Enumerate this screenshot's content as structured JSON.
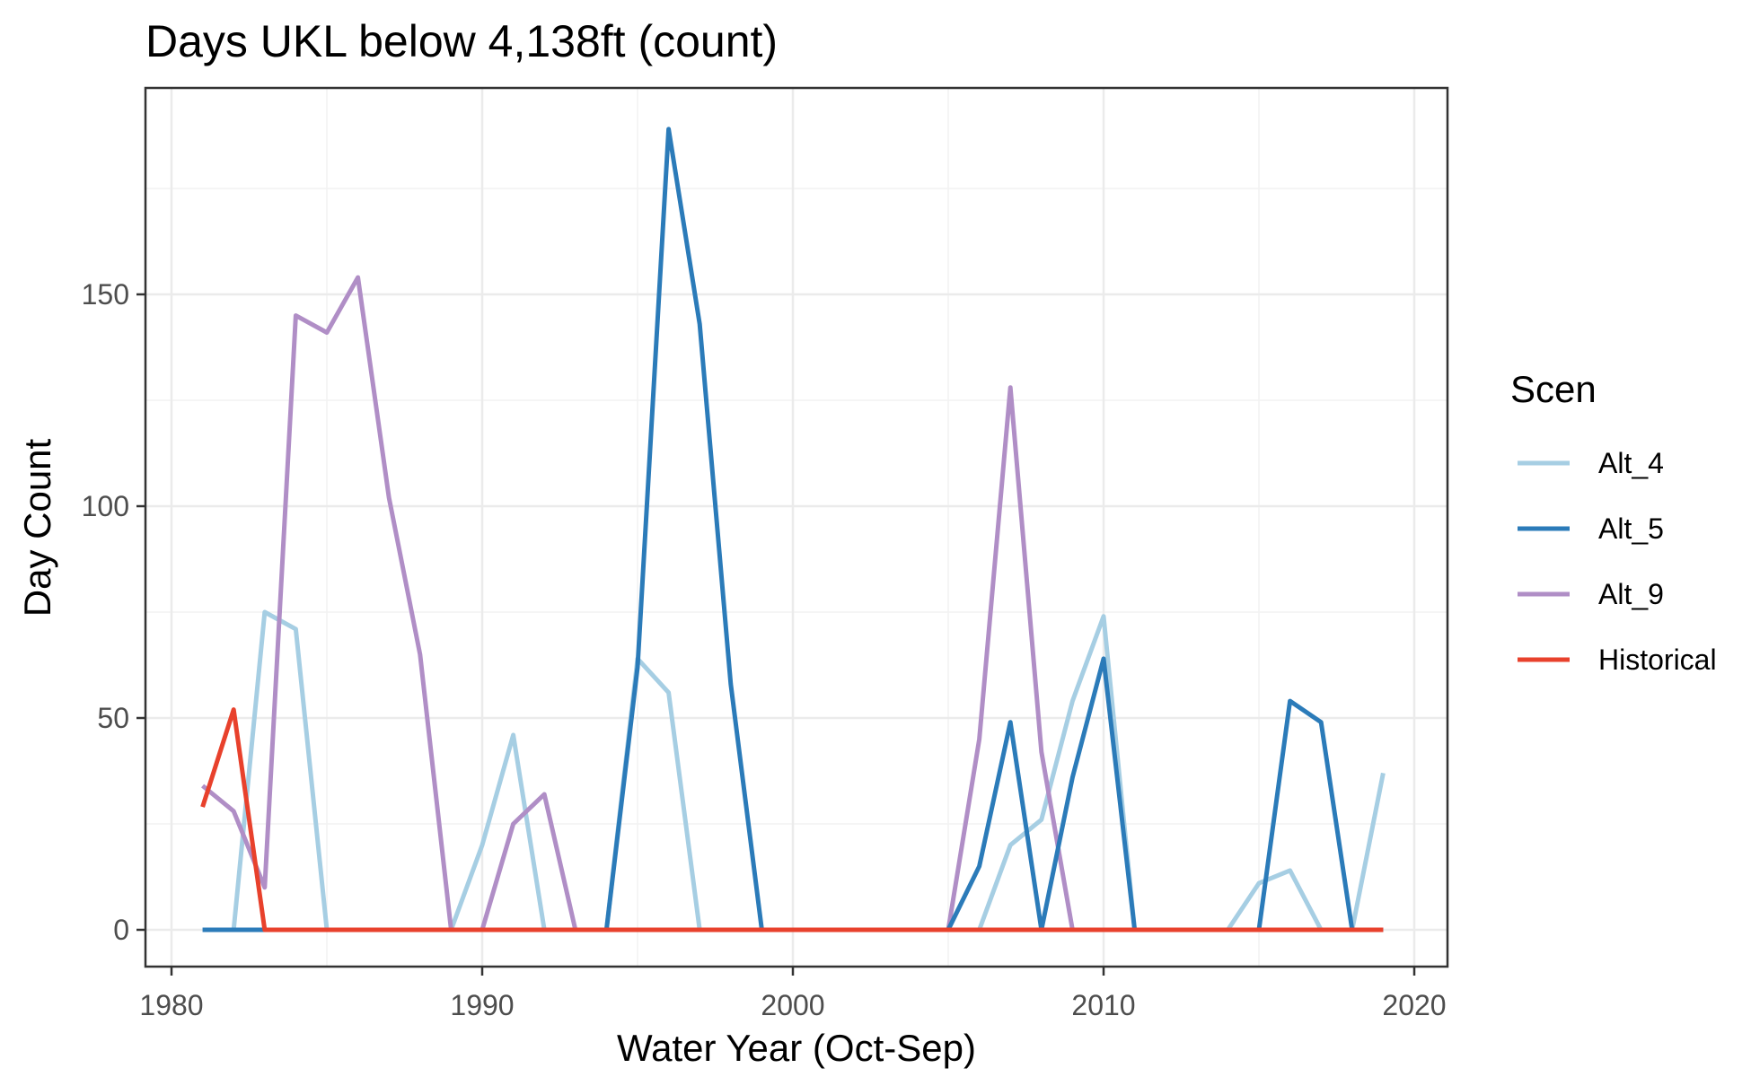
{
  "chart_data": {
    "type": "line",
    "title": "Days UKL below 4,138ft (count)",
    "xlabel": "Water Year (Oct-Sep)",
    "ylabel": "Day Count",
    "xlim": [
      1980,
      2020
    ],
    "ylim": [
      0,
      190
    ],
    "x_ticks": [
      1980,
      1990,
      2000,
      2010,
      2020
    ],
    "y_ticks": [
      0,
      50,
      100,
      150
    ],
    "grid": true,
    "legend": {
      "title": "Scen",
      "position": "right"
    },
    "x": [
      1981,
      1982,
      1983,
      1984,
      1985,
      1986,
      1987,
      1988,
      1989,
      1990,
      1991,
      1992,
      1993,
      1994,
      1995,
      1996,
      1997,
      1998,
      1999,
      2000,
      2001,
      2002,
      2003,
      2004,
      2005,
      2006,
      2007,
      2008,
      2009,
      2010,
      2011,
      2012,
      2013,
      2014,
      2015,
      2016,
      2017,
      2018,
      2019
    ],
    "series": [
      {
        "name": "Alt_4",
        "color": "#a6cee3",
        "values": [
          0,
          0,
          75,
          71,
          0,
          0,
          0,
          0,
          0,
          20,
          46,
          0,
          0,
          0,
          64,
          56,
          0,
          0,
          0,
          0,
          0,
          0,
          0,
          0,
          0,
          0,
          20,
          26,
          54,
          74,
          0,
          0,
          0,
          0,
          11,
          14,
          0,
          0,
          37
        ]
      },
      {
        "name": "Alt_9",
        "color": "#b08ec6",
        "values": [
          34,
          28,
          10,
          145,
          141,
          154,
          102,
          65,
          0,
          0,
          25,
          32,
          0,
          0,
          0,
          0,
          0,
          0,
          0,
          0,
          0,
          0,
          0,
          0,
          0,
          45,
          128,
          42,
          0,
          0,
          0,
          0,
          0,
          0,
          0,
          0,
          0,
          0,
          0
        ]
      },
      {
        "name": "Alt_5",
        "color": "#2b7bb9",
        "values": [
          0,
          0,
          0,
          0,
          0,
          0,
          0,
          0,
          0,
          0,
          0,
          0,
          0,
          0,
          62,
          189,
          143,
          58,
          0,
          0,
          0,
          0,
          0,
          0,
          0,
          15,
          49,
          0,
          36,
          64,
          0,
          0,
          0,
          0,
          0,
          54,
          49,
          0,
          0
        ]
      },
      {
        "name": "Historical",
        "color": "#e8412c",
        "values": [
          29,
          52,
          0,
          0,
          0,
          0,
          0,
          0,
          0,
          0,
          0,
          0,
          0,
          0,
          0,
          0,
          0,
          0,
          0,
          0,
          0,
          0,
          0,
          0,
          0,
          0,
          0,
          0,
          0,
          0,
          0,
          0,
          0,
          0,
          0,
          0,
          0,
          0,
          0
        ]
      }
    ],
    "legend_order": [
      "Alt_4",
      "Alt_5",
      "Alt_9",
      "Historical"
    ]
  }
}
